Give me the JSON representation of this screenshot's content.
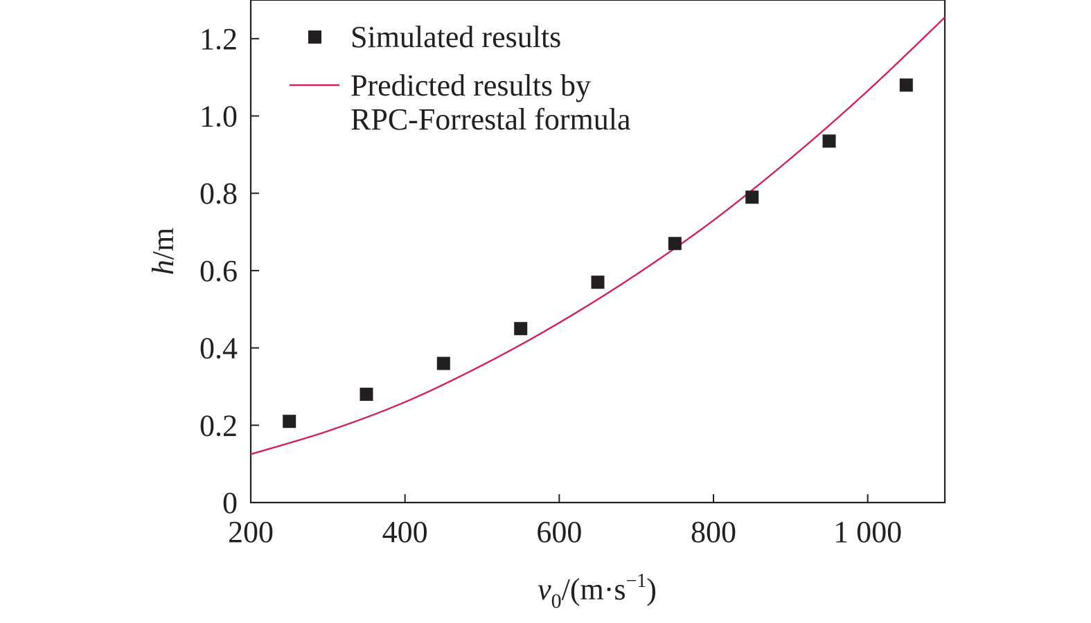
{
  "chart_data": {
    "type": "scatter",
    "x_axis": {
      "label_var": "v",
      "label_sub": "0",
      "label_unit_prefix": "/(m·s",
      "label_sup": "−1",
      "label_unit_suffix": ")",
      "range": [
        200,
        1100
      ],
      "ticks": [
        200,
        400,
        600,
        800,
        1000
      ],
      "tick_labels": [
        "200",
        "400",
        "600",
        "800",
        "1 000"
      ]
    },
    "y_axis": {
      "label_var": "h",
      "label_unit": "/m",
      "range": [
        0,
        1.3
      ],
      "ticks": [
        0,
        0.2,
        0.4,
        0.6,
        0.8,
        1.0,
        1.2
      ],
      "tick_labels": [
        "0",
        "0.2",
        "0.4",
        "0.6",
        "0.8",
        "1.0",
        "1.2"
      ]
    },
    "grid": false,
    "legend_position": "top-left",
    "series": [
      {
        "name": "Simulated results",
        "kind": "scatter",
        "marker": "square",
        "color": "#231f20",
        "x": [
          250,
          350,
          450,
          550,
          650,
          750,
          850,
          950,
          1050
        ],
        "y": [
          0.21,
          0.28,
          0.36,
          0.45,
          0.57,
          0.67,
          0.79,
          0.935,
          1.08
        ]
      },
      {
        "name_lines": [
          "Predicted results by",
          "RPC-Forrestal formula"
        ],
        "kind": "line",
        "color": "#d0215a",
        "x": [
          200,
          300,
          400,
          500,
          600,
          700,
          800,
          900,
          1000,
          1100
        ],
        "y": [
          0.125,
          0.185,
          0.26,
          0.355,
          0.465,
          0.59,
          0.73,
          0.89,
          1.065,
          1.255
        ]
      }
    ]
  }
}
